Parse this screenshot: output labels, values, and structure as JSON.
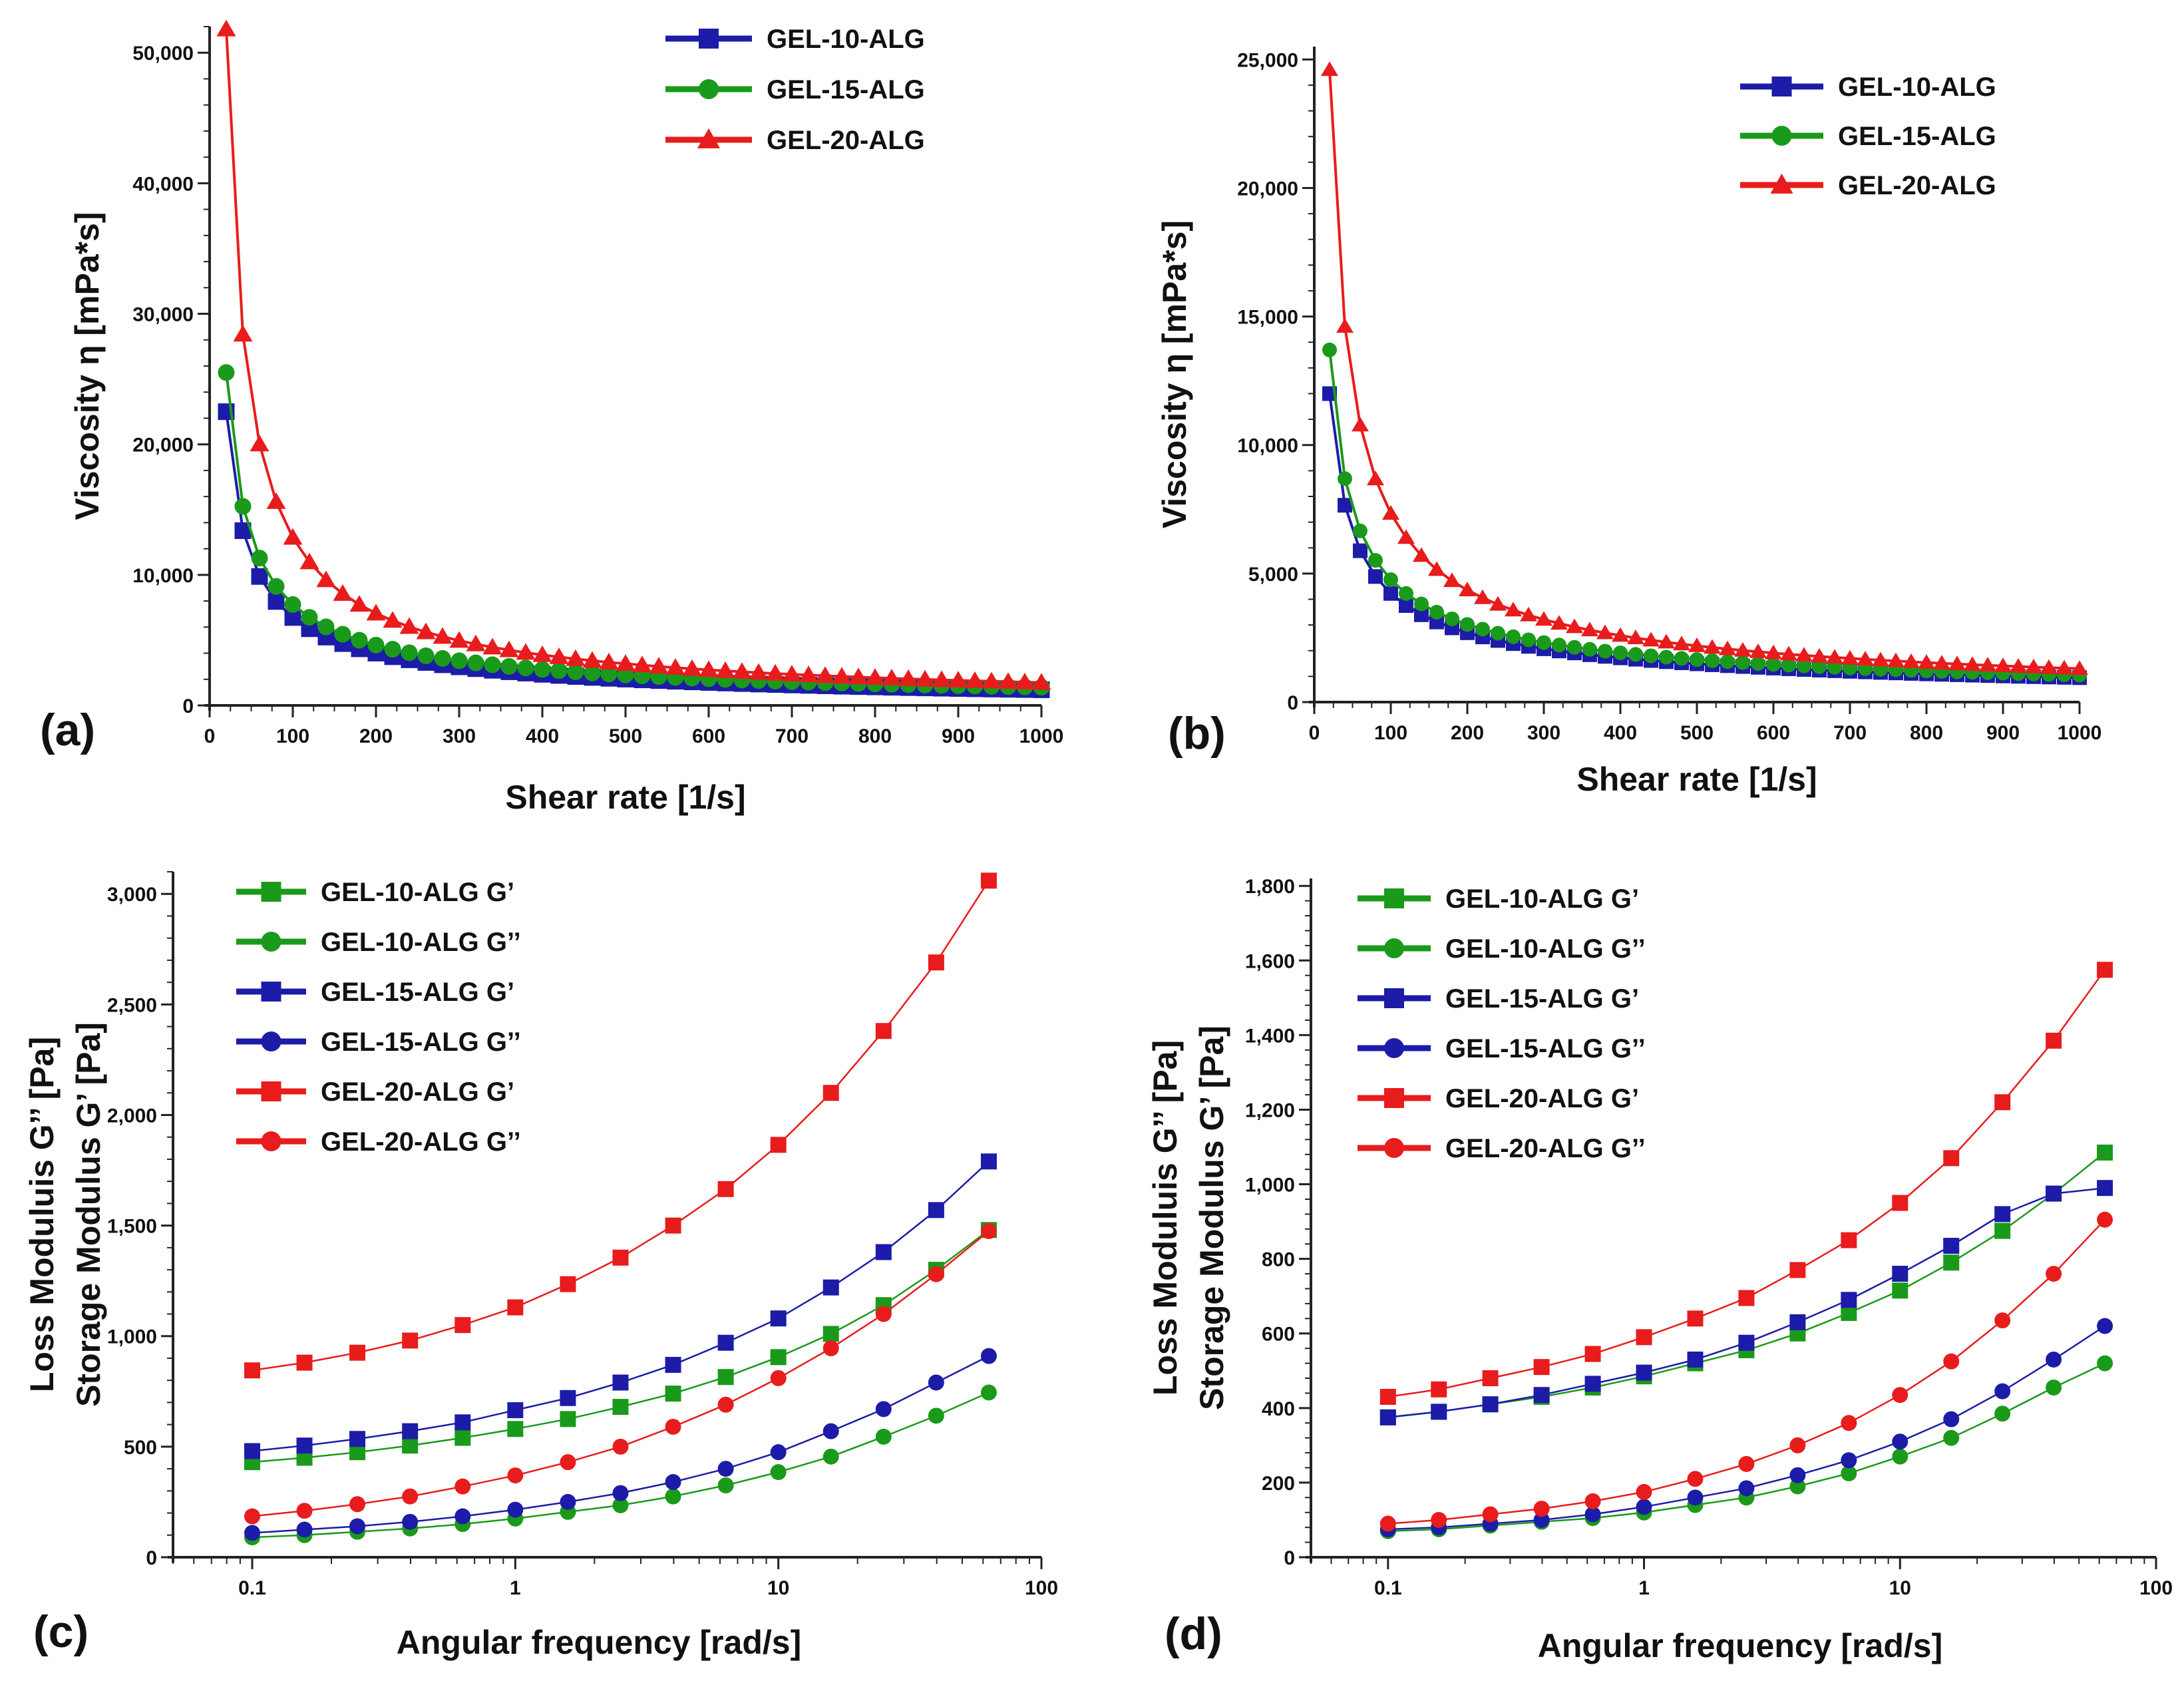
{
  "colors": {
    "blue": "#1c1ca8",
    "green": "#1a9a1a",
    "red": "#e81c1c"
  },
  "chart_data": [
    {
      "panel": "(a)",
      "type": "scatter",
      "title": "",
      "xlabel": "Shear rate [1/s]",
      "ylabel": "Viscosity η [mPa*s]",
      "xlim": [
        0,
        1000
      ],
      "ylim": [
        0,
        52000
      ],
      "x_ticks": [
        0,
        100,
        200,
        300,
        400,
        500,
        600,
        700,
        800,
        900,
        1000
      ],
      "x_tick_labels": [
        "0",
        "100",
        "200",
        "300",
        "400",
        "500",
        "600",
        "700",
        "800",
        "900",
        "1000"
      ],
      "y_ticks": [
        0,
        10000,
        20000,
        30000,
        40000,
        50000
      ],
      "y_tick_labels": [
        "0",
        "10,000",
        "20,000",
        "30,000",
        "40,000",
        "50,000"
      ],
      "series": [
        {
          "name": "GEL-10-ALG",
          "color": "#1c1ca8",
          "marker": "square",
          "model": "power",
          "x_start": 20,
          "x_step": 20,
          "count": 50,
          "y_at_20": 22500,
          "y_at_1000": 1200
        },
        {
          "name": "GEL-15-ALG",
          "color": "#1a9a1a",
          "marker": "circle",
          "model": "power",
          "x_start": 20,
          "x_step": 20,
          "count": 50,
          "y_at_20": 25500,
          "y_at_1000": 1400
        },
        {
          "name": "GEL-20-ALG",
          "color": "#e81c1c",
          "marker": "triangle",
          "model": "power",
          "x_start": 20,
          "x_step": 20,
          "count": 50,
          "y_at_20": 51800,
          "y_at_1000": 1750
        }
      ]
    },
    {
      "panel": "(b)",
      "type": "scatter",
      "title": "",
      "xlabel": "Shear rate [1/s]",
      "ylabel": "Viscosity η [mPa*s]",
      "xlim": [
        0,
        1000
      ],
      "ylim": [
        0,
        25500
      ],
      "x_ticks": [
        0,
        100,
        200,
        300,
        400,
        500,
        600,
        700,
        800,
        900,
        1000
      ],
      "x_tick_labels": [
        "0",
        "100",
        "200",
        "300",
        "400",
        "500",
        "600",
        "700",
        "800",
        "900",
        "1000"
      ],
      "y_ticks": [
        0,
        5000,
        10000,
        15000,
        20000,
        25000
      ],
      "y_tick_labels": [
        "0",
        "5,000",
        "10,000",
        "15,000",
        "20,000",
        "25,000"
      ],
      "series": [
        {
          "name": "GEL-10-ALG",
          "color": "#1c1ca8",
          "marker": "square",
          "model": "power",
          "x_start": 20,
          "x_step": 20,
          "count": 50,
          "y_at_20": 12000,
          "y_at_1000": 950
        },
        {
          "name": "GEL-15-ALG",
          "color": "#1a9a1a",
          "marker": "circle",
          "model": "power",
          "x_start": 20,
          "x_step": 20,
          "count": 50,
          "y_at_20": 13700,
          "y_at_1000": 1050
        },
        {
          "name": "GEL-20-ALG",
          "color": "#e81c1c",
          "marker": "triangle",
          "model": "power",
          "x_start": 20,
          "x_step": 20,
          "count": 50,
          "y_at_20": 24600,
          "y_at_1000": 1300
        }
      ]
    },
    {
      "panel": "(c)",
      "type": "line",
      "title": "",
      "xlabel": "Angular frequency [rad/s]",
      "ylabel": [
        "Loss Moduluis G’’ [Pa]",
        "Storage Modulus G’ [Pa]"
      ],
      "xscale": "log",
      "xlim": [
        0.05,
        100
      ],
      "ylim": [
        0,
        3100
      ],
      "x_ticks": [
        0.1,
        1,
        10,
        100
      ],
      "x_tick_labels": [
        "0.1",
        "1",
        "10",
        "100"
      ],
      "y_ticks": [
        0,
        500,
        1000,
        1500,
        2000,
        2500,
        3000
      ],
      "y_tick_labels": [
        "0",
        "500",
        "1,000",
        "1,500",
        "2,000",
        "2,500",
        "3,000"
      ],
      "x": [
        0.1,
        0.158,
        0.251,
        0.398,
        0.631,
        1,
        1.585,
        2.512,
        3.981,
        6.31,
        10,
        15.85,
        25.12,
        39.81,
        63.1
      ],
      "series": [
        {
          "name": "GEL-10-ALG G’",
          "color": "#1a9a1a",
          "marker": "square",
          "values": [
            430,
            450,
            475,
            505,
            540,
            580,
            625,
            680,
            740,
            815,
            905,
            1010,
            1140,
            1300,
            1480
          ]
        },
        {
          "name": "GEL-10-ALG G’’",
          "color": "#1a9a1a",
          "marker": "circle",
          "values": [
            90,
            100,
            115,
            130,
            150,
            175,
            205,
            235,
            275,
            325,
            385,
            455,
            545,
            640,
            745
          ]
        },
        {
          "name": "GEL-15-ALG G’",
          "color": "#1c1ca8",
          "marker": "square",
          "values": [
            480,
            505,
            535,
            570,
            610,
            665,
            720,
            790,
            870,
            970,
            1080,
            1220,
            1380,
            1570,
            1790
          ]
        },
        {
          "name": "GEL-15-ALG G’’",
          "color": "#1c1ca8",
          "marker": "circle",
          "values": [
            110,
            125,
            140,
            160,
            185,
            215,
            250,
            290,
            340,
            400,
            475,
            570,
            670,
            790,
            910
          ]
        },
        {
          "name": "GEL-20-ALG G’",
          "color": "#e81c1c",
          "marker": "square",
          "values": [
            845,
            880,
            925,
            980,
            1050,
            1130,
            1235,
            1355,
            1500,
            1665,
            1865,
            2100,
            2380,
            2690,
            3060
          ]
        },
        {
          "name": "GEL-20-ALG G’’",
          "color": "#e81c1c",
          "marker": "circle",
          "values": [
            185,
            210,
            240,
            275,
            320,
            370,
            430,
            500,
            590,
            690,
            810,
            945,
            1100,
            1280,
            1475
          ]
        }
      ]
    },
    {
      "panel": "(d)",
      "type": "line",
      "title": "",
      "xlabel": "Angular frequency [rad/s]",
      "ylabel": [
        "Loss Moduluis G’’ [Pa]",
        "Storage Modulus G’ [Pa]"
      ],
      "xscale": "log",
      "xlim": [
        0.05,
        100
      ],
      "ylim": [
        0,
        1820
      ],
      "x_ticks": [
        0.1,
        1,
        10,
        100
      ],
      "x_tick_labels": [
        "0.1",
        "1",
        "10",
        "100"
      ],
      "y_ticks": [
        0,
        200,
        400,
        600,
        800,
        1000,
        1200,
        1400,
        1600,
        1800
      ],
      "y_tick_labels": [
        "0",
        "200",
        "400",
        "600",
        "800",
        "1,000",
        "1,200",
        "1,400",
        "1,600",
        "1,800"
      ],
      "x": [
        0.1,
        0.158,
        0.251,
        0.398,
        0.631,
        1,
        1.585,
        2.512,
        3.981,
        6.31,
        10,
        15.85,
        25.12,
        39.81,
        63.1
      ],
      "series": [
        {
          "name": "GEL-10-ALG G’",
          "color": "#1a9a1a",
          "marker": "square",
          "values": [
            375,
            390,
            410,
            430,
            455,
            485,
            520,
            555,
            600,
            655,
            715,
            790,
            875,
            975,
            1085
          ]
        },
        {
          "name": "GEL-10-ALG G’’",
          "color": "#1a9a1a",
          "marker": "circle",
          "values": [
            70,
            75,
            85,
            95,
            105,
            120,
            140,
            160,
            190,
            225,
            270,
            320,
            385,
            455,
            520
          ]
        },
        {
          "name": "GEL-15-ALG G’",
          "color": "#1c1ca8",
          "marker": "square",
          "values": [
            375,
            390,
            410,
            435,
            465,
            495,
            530,
            575,
            630,
            690,
            760,
            835,
            920,
            975,
            990
          ]
        },
        {
          "name": "GEL-15-ALG G’’",
          "color": "#1c1ca8",
          "marker": "circle",
          "values": [
            75,
            80,
            90,
            100,
            115,
            135,
            160,
            185,
            220,
            260,
            310,
            370,
            445,
            530,
            620
          ]
        },
        {
          "name": "GEL-20-ALG G’",
          "color": "#e81c1c",
          "marker": "square",
          "values": [
            430,
            450,
            480,
            510,
            545,
            590,
            640,
            695,
            770,
            850,
            950,
            1070,
            1220,
            1385,
            1575
          ]
        },
        {
          "name": "GEL-20-ALG G’’",
          "color": "#e81c1c",
          "marker": "circle",
          "values": [
            90,
            100,
            115,
            130,
            150,
            175,
            210,
            250,
            300,
            360,
            435,
            525,
            635,
            760,
            905
          ]
        }
      ]
    }
  ]
}
